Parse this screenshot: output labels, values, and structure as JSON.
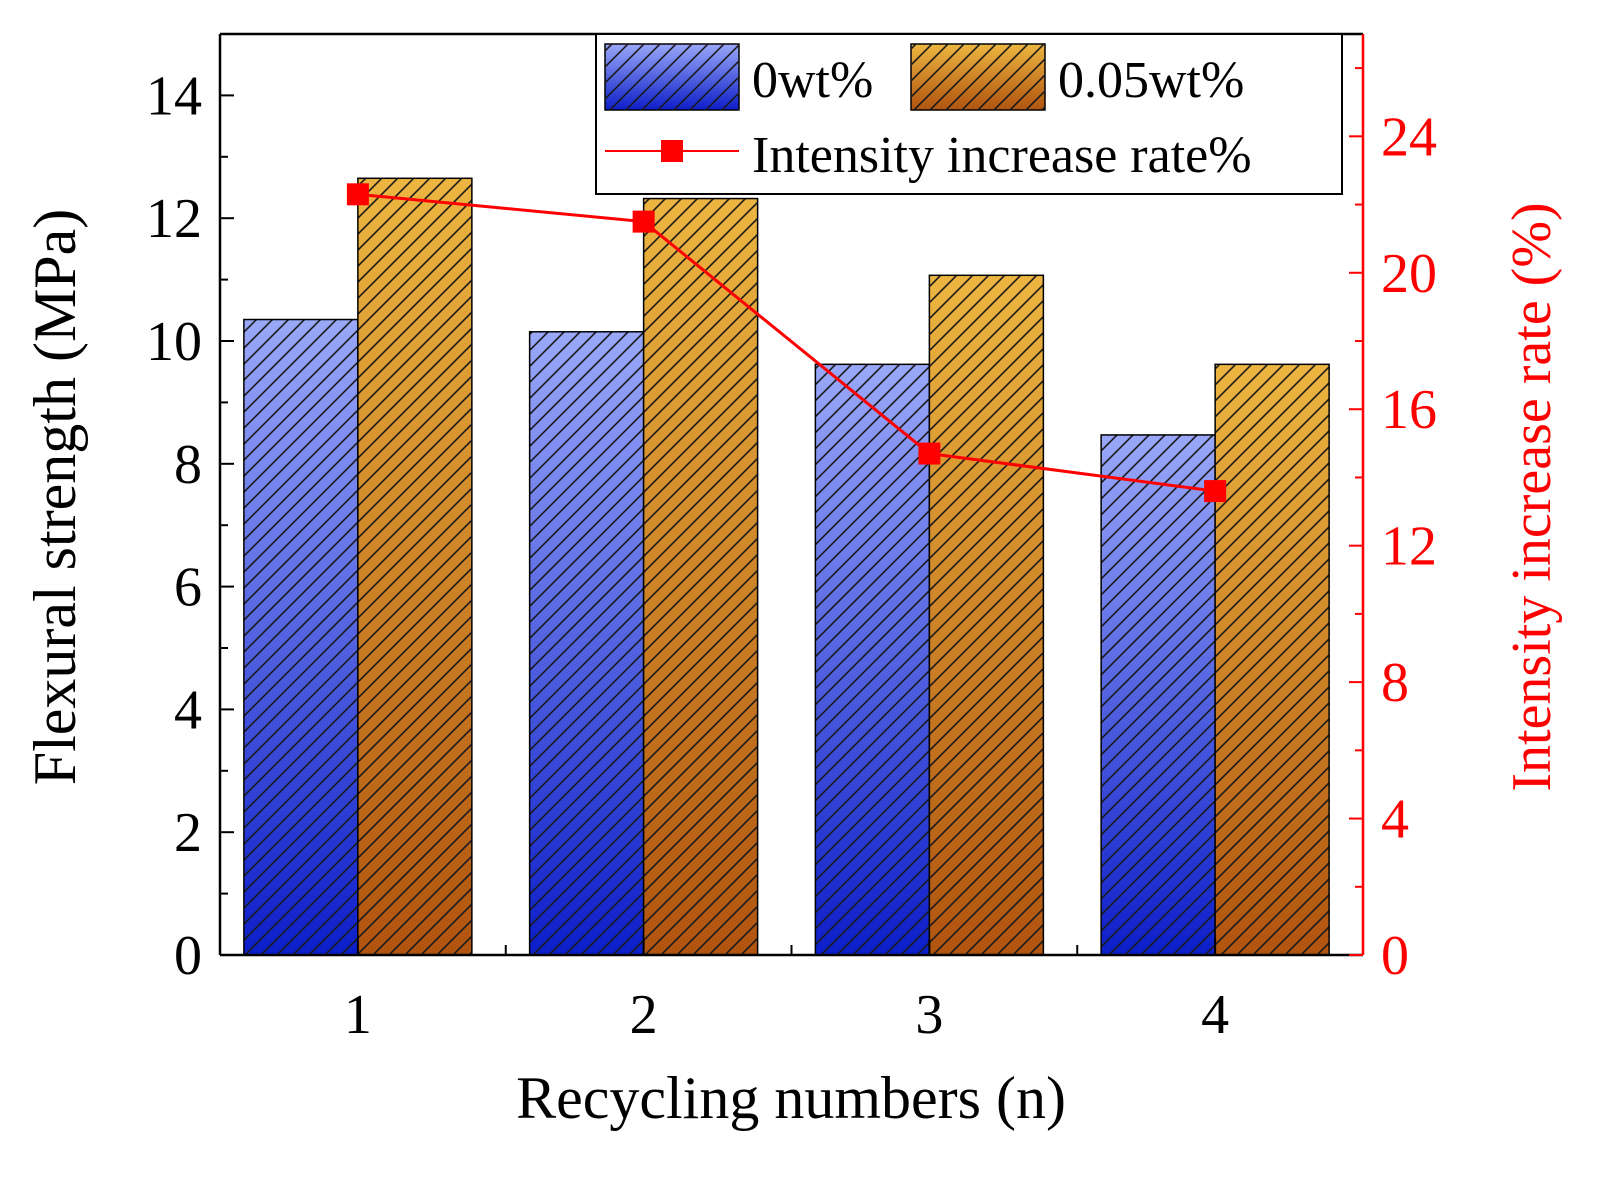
{
  "chart_data": {
    "type": "bar",
    "title": "",
    "categories": [
      "1",
      "2",
      "3",
      "4"
    ],
    "xlabel": "Recycling numbers (n)",
    "ylabel": "Flexural strength (MPa)",
    "ylim": [
      0,
      15
    ],
    "yticks": [
      0,
      2,
      4,
      6,
      8,
      10,
      12,
      14
    ],
    "ytick_labels": [
      "0",
      "2",
      "4",
      "6",
      "8",
      "10",
      "12",
      "14"
    ],
    "series": [
      {
        "name": "0wt%",
        "values": [
          10.35,
          10.15,
          9.62,
          8.47
        ],
        "color_top": "#9aa8f8",
        "color_bottom": "#0c1ec8"
      },
      {
        "name": "0.05wt%",
        "values": [
          12.65,
          12.32,
          11.07,
          9.62
        ],
        "color_top": "#ecb540",
        "color_bottom": "#b05410"
      }
    ],
    "secondary_axis": {
      "label": "Intensity increase rate (%)",
      "ylim": [
        0,
        27
      ],
      "yticks": [
        0,
        4,
        8,
        12,
        16,
        20,
        24
      ],
      "ytick_labels": [
        "0",
        "4",
        "8",
        "12",
        "16",
        "20",
        "24"
      ],
      "color": "#ff0000"
    },
    "line_series": {
      "name": "Intensity increase rate%",
      "type": "line",
      "values": [
        22.3,
        21.5,
        14.7,
        13.6
      ],
      "color": "#ff0000",
      "marker": "square"
    },
    "legend_position": "top-right",
    "grid": false
  }
}
